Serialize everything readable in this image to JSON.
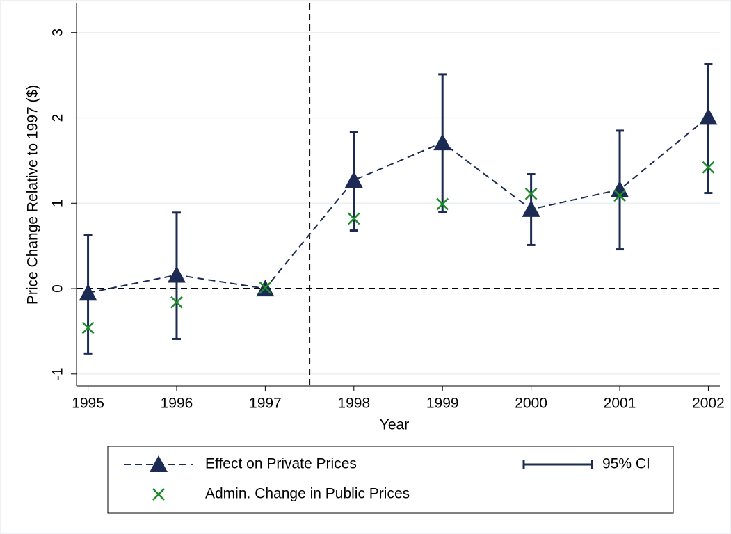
{
  "chart_data": {
    "type": "line",
    "x_label": "Year",
    "y_label": "Price Change Relative to 1997 ($)",
    "x": [
      1995,
      1996,
      1997,
      1998,
      1999,
      2000,
      2001,
      2002
    ],
    "xlim": [
      1994.87,
      2002.13
    ],
    "xticks": [
      1995,
      1996,
      1997,
      1998,
      1999,
      2000,
      2001,
      2002
    ],
    "ylim": [
      -1.14,
      3.34
    ],
    "yticks": [
      -1,
      0,
      1,
      2,
      3
    ],
    "grid": true,
    "xline": 1997.5,
    "yline": 0,
    "series": [
      {
        "name": "Effect on Private Prices",
        "color": "#1c2b53",
        "marker": "triangle",
        "line": "dash",
        "values": [
          -0.05,
          0.16,
          0,
          1.27,
          1.71,
          0.93,
          1.16,
          2.01
        ]
      },
      {
        "name": "Admin. Change in Public Prices",
        "color": "#1e8c2a",
        "marker": "x",
        "line": "none",
        "values": [
          -0.46,
          -0.16,
          0.01,
          0.82,
          0.99,
          1.11,
          1.09,
          1.42
        ]
      }
    ],
    "ci": {
      "name": "95% CI",
      "color": "#1c2b53",
      "lower": [
        -0.76,
        -0.59,
        null,
        0.68,
        0.9,
        0.51,
        0.46,
        1.12
      ],
      "upper": [
        0.63,
        0.89,
        null,
        1.83,
        2.51,
        1.34,
        1.85,
        2.63
      ]
    }
  }
}
